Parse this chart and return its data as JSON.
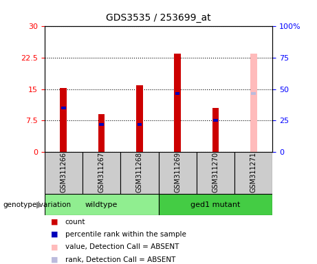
{
  "title": "GDS3535 / 253699_at",
  "samples": [
    "GSM311266",
    "GSM311267",
    "GSM311268",
    "GSM311269",
    "GSM311270",
    "GSM311271"
  ],
  "count_values": [
    15.3,
    9.0,
    16.0,
    23.5,
    10.5,
    null
  ],
  "percentile_values_left": [
    10.5,
    6.5,
    6.5,
    14.0,
    7.5,
    null
  ],
  "absent_value": [
    null,
    null,
    null,
    null,
    null,
    23.5
  ],
  "absent_rank_left": [
    null,
    null,
    null,
    null,
    null,
    14.0
  ],
  "ylim_left": [
    0,
    30
  ],
  "ylim_right": [
    0,
    100
  ],
  "yticks_left": [
    0,
    7.5,
    15,
    22.5,
    30
  ],
  "yticks_right": [
    0,
    25,
    50,
    75,
    100
  ],
  "ytick_labels_left": [
    "0",
    "7.5",
    "15",
    "22.5",
    "30"
  ],
  "ytick_labels_right": [
    "0",
    "25",
    "50",
    "75",
    "100%"
  ],
  "bar_color_red": "#CC0000",
  "bar_color_blue": "#0000BB",
  "bar_color_pink": "#FFBBBB",
  "bar_color_lavender": "#BBBBDD",
  "bar_width": 0.18,
  "blue_bar_width": 0.12,
  "blue_bar_height": 0.7,
  "lavender_bar_height": 0.7,
  "wildtype_color": "#90EE90",
  "mutant_color": "#44CC44",
  "sample_box_color": "#CCCCCC",
  "label_count": "count",
  "label_percentile": "percentile rank within the sample",
  "label_absent_value": "value, Detection Call = ABSENT",
  "label_absent_rank": "rank, Detection Call = ABSENT",
  "wildtype_samples": [
    0,
    1,
    2
  ],
  "mutant_samples": [
    3,
    4,
    5
  ]
}
